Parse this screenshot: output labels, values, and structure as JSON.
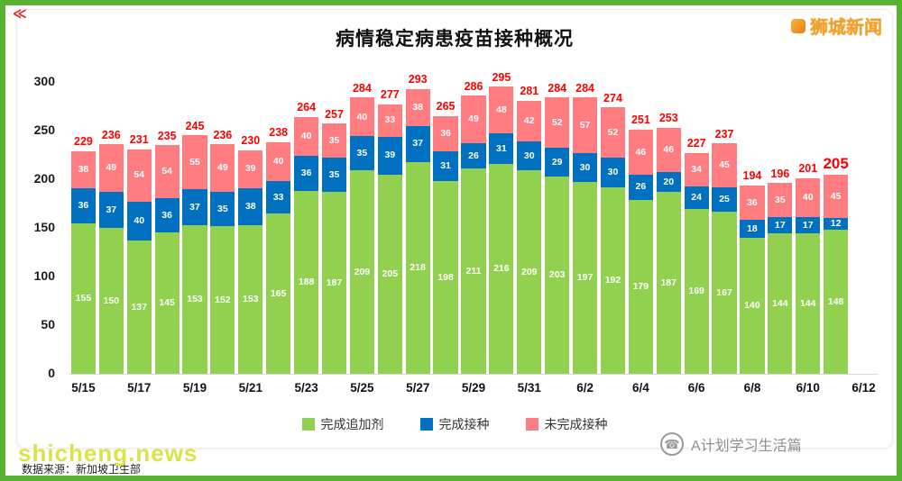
{
  "frame": {
    "corner_mark": "≪"
  },
  "header": {
    "title": "病情稳定病患疫苗接种概况",
    "brand": "狮城新闻"
  },
  "footer": {
    "watermark": "shicheng.news",
    "source_note": "数据来源：新加坡卫生部",
    "account_name": "A计划学习生活篇",
    "phone_icon": "☎"
  },
  "chart_data": {
    "type": "bar",
    "stacked": true,
    "title": "病情稳定病患疫苗接种概况",
    "ylim": [
      0,
      300
    ],
    "yticks": [
      0,
      50,
      100,
      150,
      200,
      250,
      300
    ],
    "grid": false,
    "legend_position": "bottom",
    "xtick_labels": [
      "5/15",
      "5/17",
      "5/19",
      "5/21",
      "5/23",
      "5/25",
      "5/27",
      "5/29",
      "5/31",
      "6/2",
      "6/4",
      "6/6",
      "6/8",
      "6/10",
      "6/12"
    ],
    "categories": [
      "5/15",
      "5/16",
      "5/17",
      "5/18",
      "5/19",
      "5/20",
      "5/21",
      "5/22",
      "5/23",
      "5/24",
      "5/25",
      "5/26",
      "5/27",
      "5/28",
      "5/29",
      "5/30",
      "5/31",
      "6/1",
      "6/2",
      "6/3",
      "6/4",
      "6/5",
      "6/6",
      "6/7",
      "6/8",
      "6/9",
      "6/10",
      "6/11"
    ],
    "series": [
      {
        "name": "完成追加剂",
        "color": "#92d050",
        "values": [
          155,
          150,
          137,
          145,
          153,
          152,
          153,
          165,
          188,
          187,
          209,
          205,
          218,
          198,
          211,
          216,
          209,
          203,
          197,
          192,
          179,
          187,
          169,
          167,
          140,
          144,
          144,
          148
        ]
      },
      {
        "name": "完成接种",
        "color": "#0070c0",
        "values": [
          36,
          37,
          40,
          36,
          37,
          35,
          38,
          33,
          36,
          35,
          35,
          39,
          37,
          31,
          26,
          31,
          30,
          29,
          30,
          30,
          26,
          20,
          24,
          25,
          18,
          17,
          17,
          12
        ]
      },
      {
        "name": "未完成接种",
        "color": "#ff7c80",
        "values": [
          38,
          49,
          54,
          54,
          55,
          49,
          39,
          40,
          40,
          35,
          40,
          33,
          38,
          36,
          49,
          48,
          42,
          52,
          57,
          52,
          46,
          46,
          34,
          45,
          36,
          35,
          40,
          45
        ]
      }
    ],
    "totals": [
      229,
      236,
      231,
      235,
      245,
      236,
      230,
      238,
      264,
      257,
      284,
      277,
      293,
      265,
      286,
      295,
      281,
      284,
      284,
      274,
      251,
      253,
      227,
      237,
      194,
      196,
      201,
      205
    ],
    "total_color": "#fe0000",
    "highlight_last_total": true,
    "legend": [
      {
        "label": "完成追加剂",
        "color": "#92d050"
      },
      {
        "label": "完成接种",
        "color": "#0070c0"
      },
      {
        "label": "未完成接种",
        "color": "#ff7c80"
      }
    ]
  }
}
